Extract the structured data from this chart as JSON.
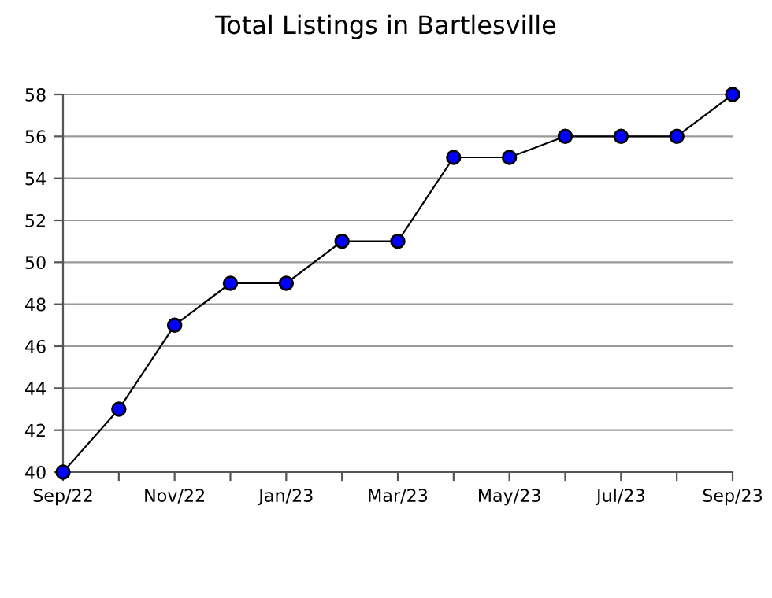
{
  "chart_data": {
    "type": "line",
    "title": "Total Listings in Bartlesville",
    "categories": [
      "Sep/22",
      null,
      "Nov/22",
      null,
      "Jan/23",
      null,
      "Mar/23",
      null,
      "May/23",
      null,
      "Jul/23",
      null,
      "Sep/23"
    ],
    "series": [
      {
        "color": "#0000ff",
        "values": [
          40,
          43,
          47,
          49,
          49,
          51,
          51,
          55,
          55,
          56,
          56,
          56,
          58
        ]
      }
    ],
    "ylim": [
      40,
      58
    ],
    "yticks": [
      40,
      42,
      44,
      46,
      48,
      50,
      52,
      54,
      56,
      58
    ],
    "grid": "y",
    "marker": "circle",
    "line_style": "solid"
  }
}
